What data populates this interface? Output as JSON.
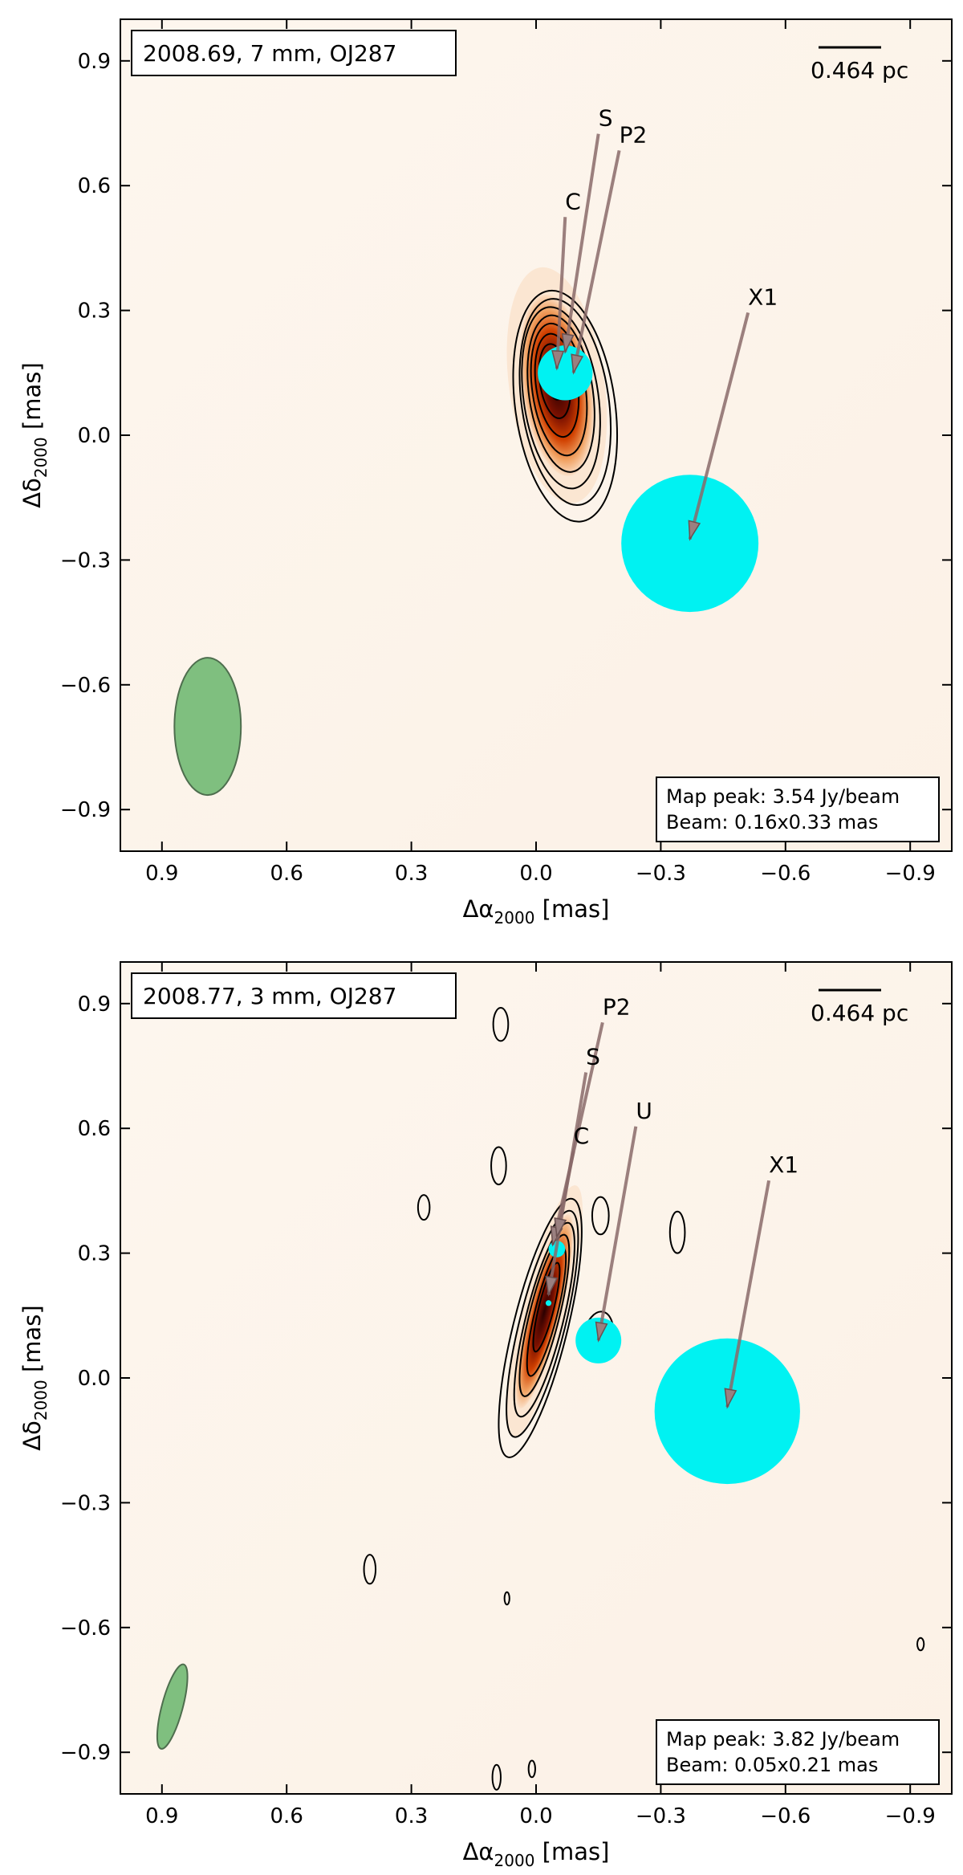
{
  "colors": {
    "background": "#fdf6ee",
    "frame": "#000000",
    "contour": "#000000",
    "component": "#00f2f2",
    "beam": "#7fbf7f",
    "beam_edge": "#4e6e4e",
    "arrow": "#8a6a6a",
    "peak_dark": "#2a0000",
    "peak_mid": "#d04000",
    "peak_light": "#fbe0c8"
  },
  "chart_data": [
    {
      "type": "image",
      "panel": "top",
      "title": "2008.69,  7 mm,  OJ287",
      "xlabel": "Δα",
      "xlabel_sub": "2000",
      "xlabel_unit": "[mas]",
      "ylabel": "Δδ",
      "ylabel_sub": "2000",
      "ylabel_unit": "[mas]",
      "xlim": [
        1.0,
        -1.0
      ],
      "ylim": [
        -1.0,
        1.0
      ],
      "xticks": [
        0.9,
        0.6,
        0.3,
        0.0,
        -0.3,
        -0.6,
        -0.9
      ],
      "xtick_labels": [
        "0.9",
        "0.6",
        "0.3",
        "0.0",
        "−0.3",
        "−0.6",
        "−0.9"
      ],
      "yticks": [
        0.9,
        0.6,
        0.3,
        0.0,
        -0.3,
        -0.6,
        -0.9
      ],
      "ytick_labels": [
        "0.9",
        "0.6",
        "0.3",
        "0.0",
        "−0.3",
        "−0.6",
        "−0.9"
      ],
      "scale_bar": "0.464 pc",
      "map_peak": "Map peak: 3.54 Jy/beam",
      "beam_text": "Beam: 0.16x0.33 mas",
      "beam": {
        "x": 0.79,
        "y": -0.7,
        "major": 0.33,
        "minor": 0.16,
        "pa": 0
      },
      "core": {
        "x": -0.05,
        "y": 0.12,
        "sx": 0.085,
        "sy": 0.22,
        "pa": -8,
        "levels": 9
      },
      "contours": [
        {
          "x": -0.07,
          "y": 0.07,
          "sx": 0.12,
          "sy": 0.28,
          "pa": -8
        },
        {
          "x": -0.07,
          "y": 0.08,
          "sx": 0.105,
          "sy": 0.25,
          "pa": -8
        },
        {
          "x": -0.06,
          "y": 0.09,
          "sx": 0.09,
          "sy": 0.22,
          "pa": -8
        },
        {
          "x": -0.06,
          "y": 0.1,
          "sx": 0.077,
          "sy": 0.19,
          "pa": -8
        },
        {
          "x": -0.055,
          "y": 0.11,
          "sx": 0.064,
          "sy": 0.16,
          "pa": -8
        },
        {
          "x": -0.05,
          "y": 0.12,
          "sx": 0.05,
          "sy": 0.125,
          "pa": -8
        },
        {
          "x": -0.045,
          "y": 0.13,
          "sx": 0.036,
          "sy": 0.09,
          "pa": -8
        },
        {
          "x": -0.045,
          "y": 0.14,
          "sx": 0.022,
          "sy": 0.055,
          "pa": -8
        }
      ],
      "components": [
        {
          "label": "S",
          "x": -0.05,
          "y": 0.16,
          "size": 0.0
        },
        {
          "label": "P2",
          "x": -0.09,
          "y": 0.15,
          "size": 0.0
        },
        {
          "label": "C",
          "x": -0.07,
          "y": 0.15,
          "size": 0.066
        },
        {
          "label": "X1",
          "x": -0.37,
          "y": -0.26,
          "size": 0.165
        }
      ],
      "labels": [
        {
          "text": "S",
          "x": -0.15,
          "y": 0.74,
          "tip_x": -0.07,
          "tip_y": 0.2
        },
        {
          "text": "P2",
          "x": -0.2,
          "y": 0.7,
          "tip_x": -0.09,
          "tip_y": 0.15
        },
        {
          "text": "C",
          "x": -0.07,
          "y": 0.54,
          "tip_x": -0.05,
          "tip_y": 0.16
        },
        {
          "text": "X1",
          "x": -0.51,
          "y": 0.31,
          "tip_x": -0.37,
          "tip_y": -0.25
        }
      ]
    },
    {
      "type": "image",
      "panel": "bottom",
      "title": "2008.77,  3 mm,  OJ287",
      "xlabel": "Δα",
      "xlabel_sub": "2000",
      "xlabel_unit": "[mas]",
      "ylabel": "Δδ",
      "ylabel_sub": "2000",
      "ylabel_unit": "[mas]",
      "xlim": [
        1.0,
        -1.0
      ],
      "ylim": [
        -1.0,
        1.0
      ],
      "xticks": [
        0.9,
        0.6,
        0.3,
        0.0,
        -0.3,
        -0.6,
        -0.9
      ],
      "xtick_labels": [
        "0.9",
        "0.6",
        "0.3",
        "0.0",
        "−0.3",
        "−0.6",
        "−0.9"
      ],
      "yticks": [
        0.9,
        0.6,
        0.3,
        0.0,
        -0.3,
        -0.6,
        -0.9
      ],
      "ytick_labels": [
        "0.9",
        "0.6",
        "0.3",
        "0.0",
        "−0.3",
        "−0.6",
        "−0.9"
      ],
      "scale_bar": "0.464 pc",
      "map_peak": "Map peak: 3.82 Jy/beam",
      "beam_text": "Beam: 0.05x0.21 mas",
      "beam": {
        "x": 0.875,
        "y": -0.79,
        "major": 0.21,
        "minor": 0.05,
        "pa": 15
      },
      "core": {
        "x": -0.02,
        "y": 0.16,
        "sx": 0.04,
        "sy": 0.24,
        "pa": 14,
        "levels": 7
      },
      "contours": [
        {
          "x": -0.01,
          "y": 0.12,
          "sx": 0.065,
          "sy": 0.32,
          "pa": 14
        },
        {
          "x": -0.015,
          "y": 0.13,
          "sx": 0.055,
          "sy": 0.28,
          "pa": 14
        },
        {
          "x": -0.02,
          "y": 0.14,
          "sx": 0.045,
          "sy": 0.24,
          "pa": 14
        },
        {
          "x": -0.02,
          "y": 0.15,
          "sx": 0.036,
          "sy": 0.2,
          "pa": 14
        },
        {
          "x": -0.025,
          "y": 0.16,
          "sx": 0.027,
          "sy": 0.16,
          "pa": 14
        },
        {
          "x": -0.025,
          "y": 0.17,
          "sx": 0.018,
          "sy": 0.11,
          "pa": 14
        },
        {
          "x": -0.15,
          "y": 0.1,
          "sx": 0.035,
          "sy": 0.06,
          "pa": 10
        },
        {
          "x": 0.085,
          "y": 0.85,
          "sx": 0.018,
          "sy": 0.04,
          "pa": 0
        },
        {
          "x": 0.09,
          "y": 0.51,
          "sx": 0.018,
          "sy": 0.045,
          "pa": 0
        },
        {
          "x": 0.27,
          "y": 0.41,
          "sx": 0.014,
          "sy": 0.03,
          "pa": 0
        },
        {
          "x": -0.155,
          "y": 0.39,
          "sx": 0.02,
          "sy": 0.045,
          "pa": 0
        },
        {
          "x": -0.34,
          "y": 0.35,
          "sx": 0.018,
          "sy": 0.05,
          "pa": 0
        },
        {
          "x": 0.4,
          "y": -0.46,
          "sx": 0.014,
          "sy": 0.035,
          "pa": 0
        },
        {
          "x": 0.07,
          "y": -0.53,
          "sx": 0.006,
          "sy": 0.015,
          "pa": 0
        },
        {
          "x": 0.095,
          "y": -0.96,
          "sx": 0.01,
          "sy": 0.03,
          "pa": 0
        },
        {
          "x": 0.01,
          "y": -0.94,
          "sx": 0.008,
          "sy": 0.02,
          "pa": 0
        },
        {
          "x": -0.925,
          "y": -0.64,
          "sx": 0.008,
          "sy": 0.015,
          "pa": 0
        }
      ],
      "components": [
        {
          "label": "C",
          "x": -0.05,
          "y": 0.31,
          "size": 0.02
        },
        {
          "label": "S",
          "x": -0.03,
          "y": 0.18,
          "size": 0.007
        },
        {
          "label": "U",
          "x": -0.15,
          "y": 0.09,
          "size": 0.055
        },
        {
          "label": "X1",
          "x": -0.46,
          "y": -0.08,
          "size": 0.175
        }
      ],
      "labels": [
        {
          "text": "P2",
          "x": -0.16,
          "y": 0.87,
          "tip_x": -0.04,
          "tip_y": 0.32
        },
        {
          "text": "S",
          "x": -0.12,
          "y": 0.75,
          "tip_x": -0.03,
          "tip_y": 0.2
        },
        {
          "text": "C",
          "x": -0.09,
          "y": 0.56,
          "tip_x": -0.05,
          "tip_y": 0.34
        },
        {
          "text": "U",
          "x": -0.24,
          "y": 0.62,
          "tip_x": -0.15,
          "tip_y": 0.09
        },
        {
          "text": "X1",
          "x": -0.56,
          "y": 0.49,
          "tip_x": -0.46,
          "tip_y": -0.07
        }
      ]
    }
  ]
}
